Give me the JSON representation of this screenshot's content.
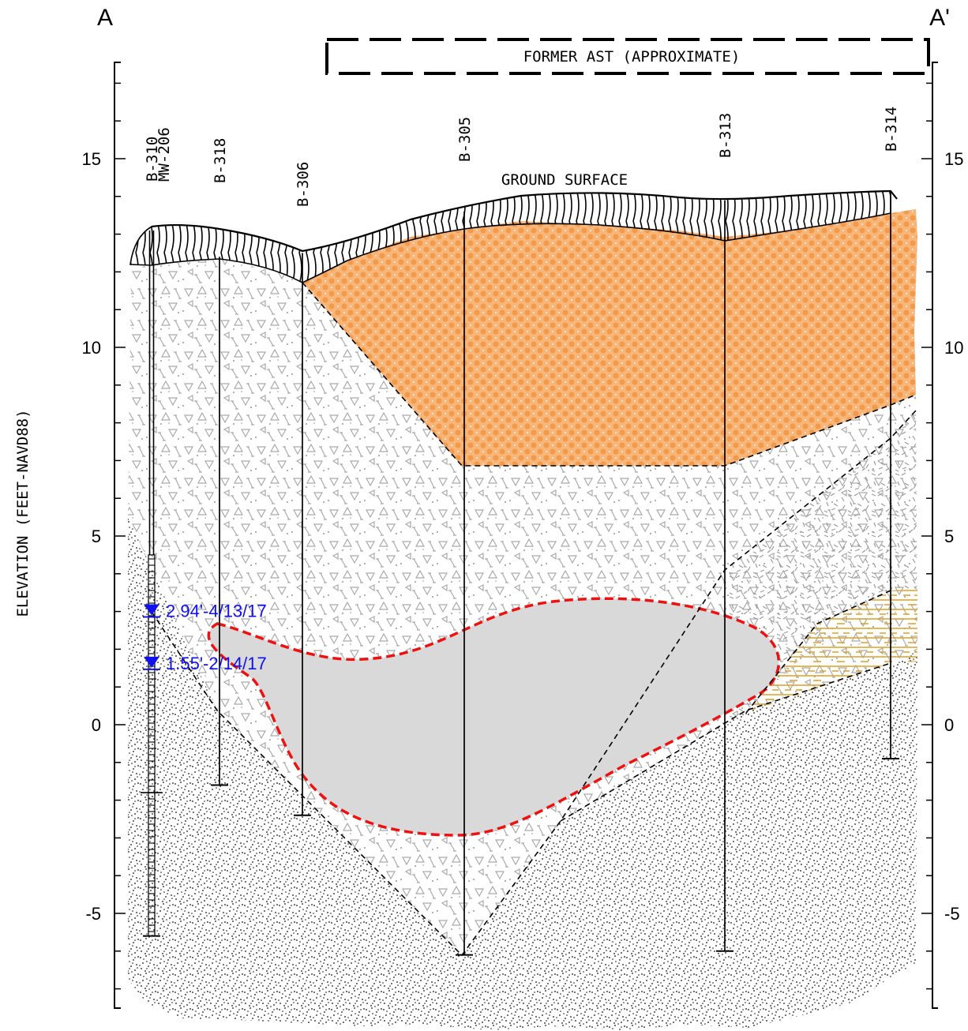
{
  "section": {
    "start_label": "A",
    "end_label": "A'",
    "ast_label": "FORMER AST (APPROXIMATE)",
    "ground_surface_label": "GROUND SURFACE",
    "y_axis_label": "ELEVATION (FEET-NAVD88)",
    "elevation_ticks": [
      "15",
      "10",
      "5",
      "0",
      "-5"
    ],
    "elevation_range_ft": [
      -7.5,
      17.5
    ],
    "boreholes": [
      {
        "label": "B-310",
        "label2": "MW-206",
        "ground_elev_ft": 13.1,
        "bottom_elev_ft": -5.6,
        "monitoring_well": true
      },
      {
        "label": "B-318",
        "ground_elev_ft": 12.4,
        "bottom_elev_ft": -1.6
      },
      {
        "label": "B-306",
        "ground_elev_ft": 12.5,
        "bottom_elev_ft": -2.4
      },
      {
        "label": "B-305",
        "ground_elev_ft": 13.6,
        "bottom_elev_ft": -6.1
      },
      {
        "label": "B-313",
        "ground_elev_ft": 13.9,
        "bottom_elev_ft": -6.0
      },
      {
        "label": "B-314",
        "ground_elev_ft": 14.0,
        "bottom_elev_ft": -0.9
      }
    ],
    "water_levels": [
      {
        "text": "2.94'-4/13/17",
        "elev_ft": 2.94
      },
      {
        "text": "1.55'-2/14/17",
        "elev_ft": 1.55
      }
    ],
    "colors": {
      "orange_fill": "#f8b67a",
      "orange_dot": "#f4a259",
      "contamination_outline": "#ee1111",
      "contamination_fill": "#d9d9d9",
      "water_level": "#1111ee",
      "peat_lines": "#e0a020",
      "fill_symbols": "#a9a9a9",
      "frame": "#000000"
    }
  }
}
